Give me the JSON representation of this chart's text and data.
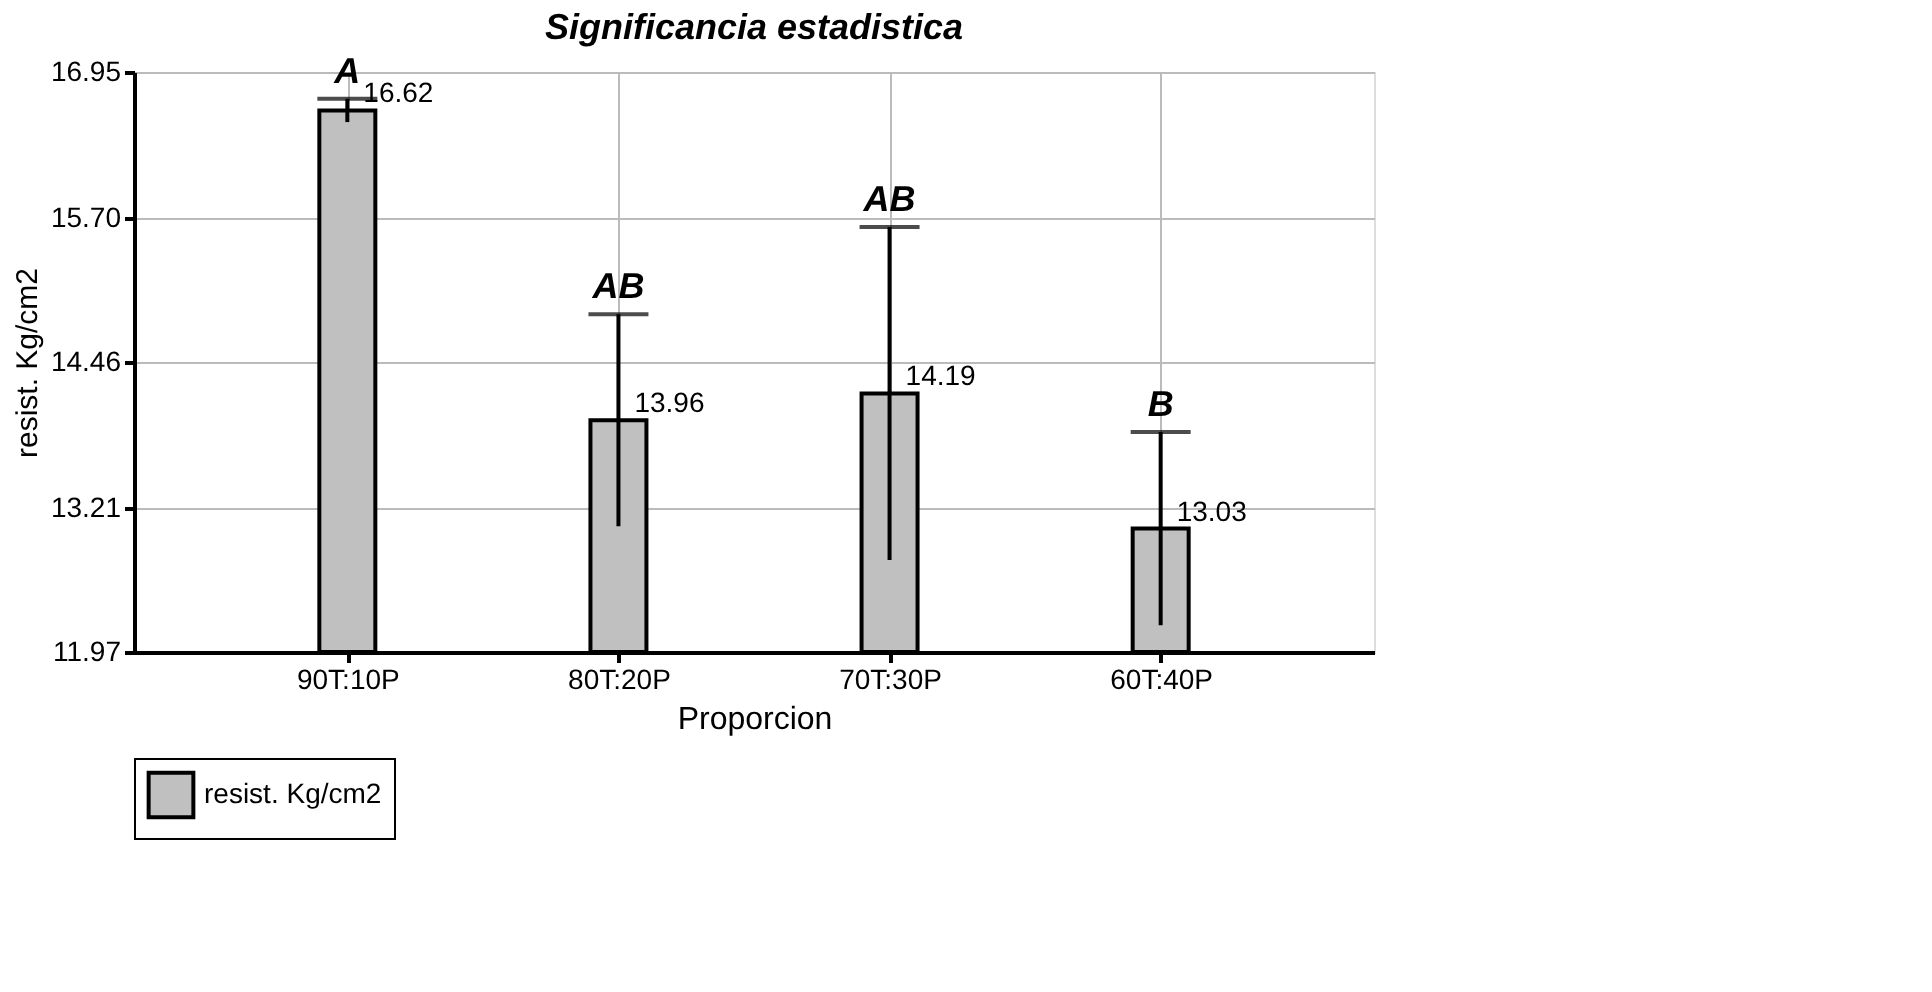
{
  "chart_data": {
    "type": "bar",
    "title": "Significancia estadistica",
    "xlabel": "Proporcion",
    "ylabel": "resist. Kg/cm2",
    "categories": [
      "90T:10P",
      "80T:20P",
      "70T:30P",
      "60T:40P"
    ],
    "series": [
      {
        "name": "resist. Kg/cm2",
        "color": "#c0c0c0",
        "values": [
          16.62,
          13.96,
          14.19,
          13.03
        ],
        "errors": [
          0.1,
          0.91,
          1.43,
          0.83
        ]
      }
    ],
    "ylim": [
      11.97,
      16.95
    ],
    "yticks": [
      11.97,
      13.21,
      14.46,
      {
        "value": 15.7,
        "label": "15.70"
      },
      16.95
    ],
    "annotations": [
      {
        "text": "A",
        "x": "90T:10P",
        "y": 16.72
      },
      {
        "text": "AB",
        "x": "80T:20P",
        "y": 14.87
      },
      {
        "text": "AB",
        "x": "70T:30P",
        "y": 15.62
      },
      {
        "text": "B",
        "x": "60T:40P",
        "y": 13.86
      }
    ],
    "data_labels": true,
    "grid": true,
    "legend": "bottom"
  }
}
